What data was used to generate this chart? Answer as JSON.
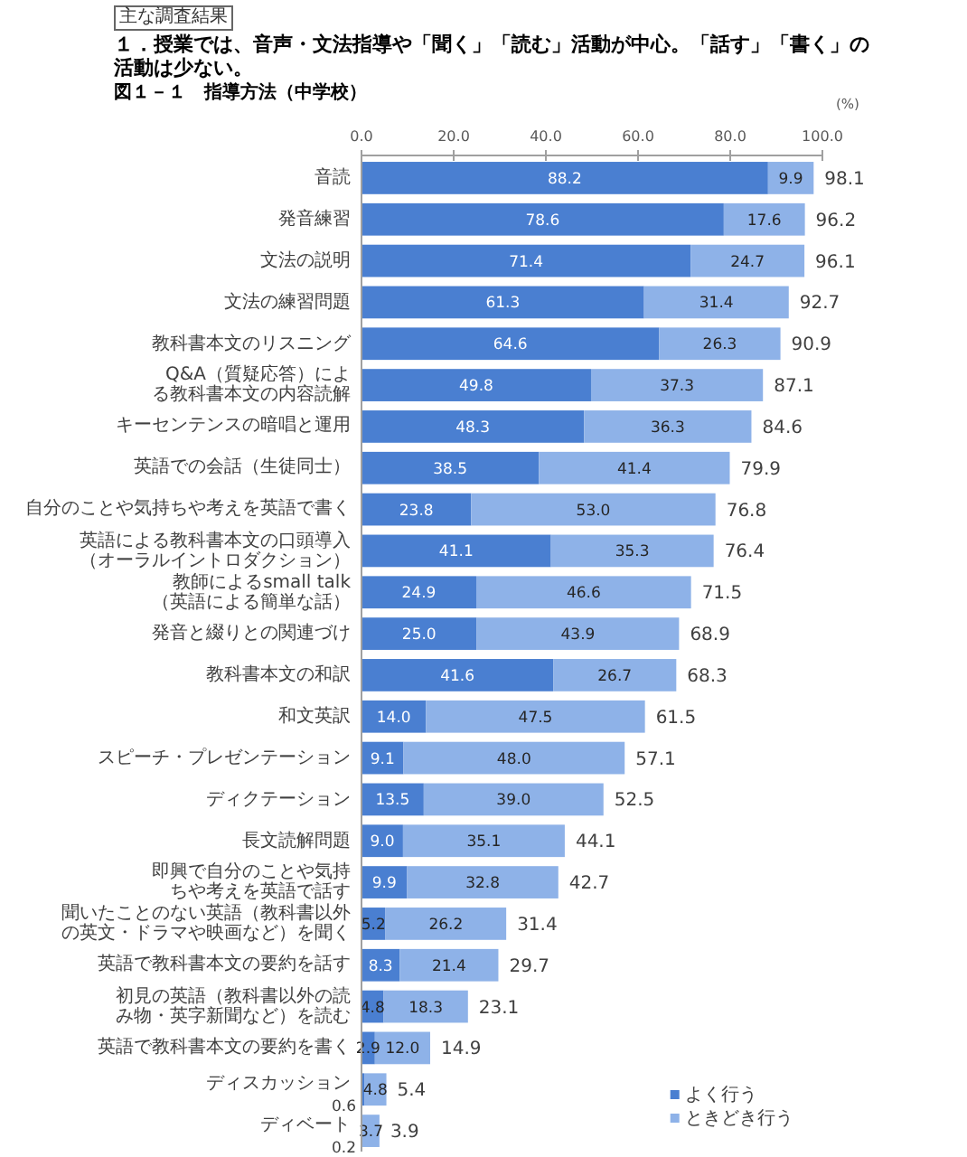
{
  "chart_data": {
    "type": "bar",
    "orientation": "horizontal",
    "stacked": true,
    "annotations": [
      "主な調査結果"
    ],
    "title": "１．授業では、音声・文法指導や「聞く」「読む」活動が中心。「話す」「書く」の活動は少ない。",
    "subtitle": "図１－１　指導方法（中学校）",
    "xlabel": "(%)",
    "categories": [
      "音読",
      "発音練習",
      "文法の説明",
      "文法の練習問題",
      "教科書本文のリスニング",
      "Q&A（質疑応答）による教科書本文の内容読解",
      "キーセンテンスの暗唱と運用",
      "英語での会話（生徒同士）",
      "自分のことや気持ちや考えを英語で書く",
      "英語による教科書本文の口頭導入（オーラルイントロダクション）",
      "教師によるsmall talk（英語による簡単な話）",
      "発音と綴りとの関連づけ",
      "教科書本文の和訳",
      "和文英訳",
      "スピーチ・プレゼンテーション",
      "ディクテーション",
      "長文読解問題",
      "即興で自分のことや気持ちや考えを英語で話す",
      "聞いたことのない英語（教科書以外の英文・ドラマや映画など）を聞く",
      "英語で教科書本文の要約を話す",
      "初見の英語（教科書以外の読み物・英字新聞など）を読む",
      "英語で教科書本文の要約を書く",
      "ディスカッション",
      "ディベート"
    ],
    "series": [
      {
        "name": "よく行う",
        "color": "#4a7fd1",
        "values": [
          88.2,
          78.6,
          71.4,
          61.3,
          64.6,
          49.8,
          48.3,
          38.5,
          23.8,
          41.1,
          24.9,
          25.0,
          41.6,
          14.0,
          9.1,
          13.5,
          9.0,
          9.9,
          5.2,
          8.3,
          4.8,
          2.9,
          0.6,
          0.2
        ],
        "value_labels": [
          "88.2",
          "78.6",
          "71.4",
          "61.3",
          "64.6",
          "49.8",
          "48.3",
          "38.5",
          "23.8",
          "41.1",
          "24.9",
          "25.0",
          "41.6",
          "14.0",
          "9.1",
          "13.5",
          "9.0",
          "9.9",
          "5.2",
          "8.3",
          "4.8",
          "2.9",
          "0.6",
          "0.2"
        ]
      },
      {
        "name": "ときどき行う",
        "color": "#8eb2e8",
        "values": [
          9.9,
          17.6,
          24.7,
          31.4,
          26.3,
          37.3,
          36.3,
          41.4,
          53.0,
          35.3,
          46.6,
          43.9,
          26.7,
          47.5,
          48.0,
          39.0,
          35.1,
          32.8,
          26.2,
          21.4,
          18.3,
          12.0,
          4.8,
          3.7
        ],
        "value_labels": [
          "9.9",
          "17.6",
          "24.7",
          "31.4",
          "26.3",
          "37.3",
          "36.3",
          "41.4",
          "53.0",
          "35.3",
          "46.6",
          "43.9",
          "26.7",
          "47.5",
          "48.0",
          "39.0",
          "35.1",
          "32.8",
          "26.2",
          "21.4",
          "18.3",
          "12.0",
          "4.8",
          "3.7"
        ]
      }
    ],
    "totals": [
      "98.1",
      "96.2",
      "96.1",
      "92.7",
      "90.9",
      "87.1",
      "84.6",
      "79.9",
      "76.8",
      "76.4",
      "71.5",
      "68.9",
      "68.3",
      "61.5",
      "57.1",
      "52.5",
      "44.1",
      "42.7",
      "31.4",
      "29.7",
      "23.1",
      "14.9",
      "5.4",
      "3.9"
    ],
    "xlim": [
      0,
      100
    ],
    "xticks": [
      {
        "value": 0,
        "label": "0.0"
      },
      {
        "value": 20,
        "label": "20.0"
      },
      {
        "value": 40,
        "label": "40.0"
      },
      {
        "value": 60,
        "label": "60.0"
      },
      {
        "value": 80,
        "label": "80.0"
      },
      {
        "value": 100,
        "label": "100.0"
      }
    ],
    "legend": "bottom right"
  }
}
